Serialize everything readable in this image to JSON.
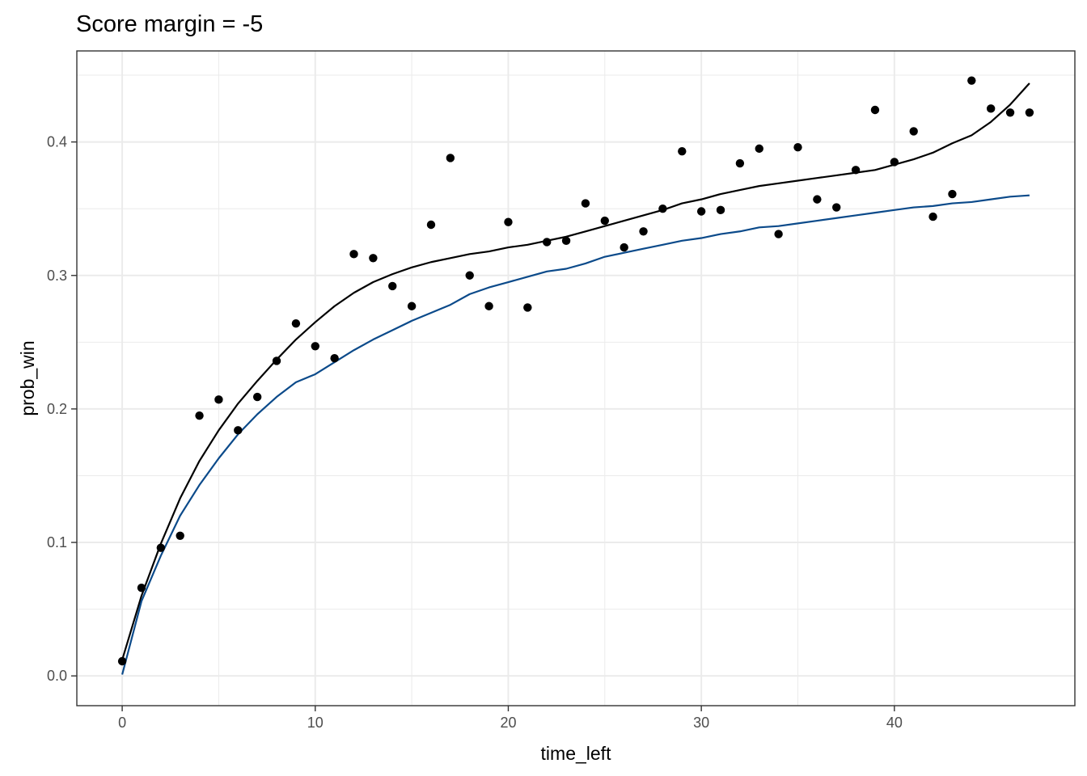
{
  "chart_data": {
    "type": "scatter",
    "title": "Score margin = -5",
    "xlabel": "time_left",
    "ylabel": "prob_win",
    "xlim": [
      -2.35,
      49.35
    ],
    "ylim": [
      -0.0223,
      0.4682
    ],
    "x_ticks": [
      0,
      10,
      20,
      30,
      40
    ],
    "x_tick_labels": [
      "0",
      "10",
      "20",
      "30",
      "40"
    ],
    "y_ticks": [
      0.0,
      0.1,
      0.2,
      0.3,
      0.4
    ],
    "y_tick_labels": [
      "0.0",
      "0.1",
      "0.2",
      "0.3",
      "0.4"
    ],
    "grid": true,
    "legend": "none",
    "points": {
      "color": "#000000",
      "x": [
        0,
        1,
        2,
        3,
        4,
        5,
        6,
        7,
        8,
        9,
        10,
        11,
        12,
        13,
        14,
        15,
        16,
        17,
        18,
        19,
        20,
        21,
        22,
        23,
        24,
        25,
        26,
        27,
        28,
        29,
        30,
        31,
        32,
        33,
        34,
        35,
        36,
        37,
        38,
        39,
        40,
        41,
        42,
        43,
        44,
        45,
        46,
        47
      ],
      "y": [
        0.011,
        0.066,
        0.096,
        0.105,
        0.195,
        0.207,
        0.184,
        0.209,
        0.236,
        0.264,
        0.247,
        0.238,
        0.316,
        0.313,
        0.292,
        0.277,
        0.338,
        0.388,
        0.3,
        0.277,
        0.34,
        0.276,
        0.325,
        0.326,
        0.354,
        0.341,
        0.321,
        0.333,
        0.35,
        0.393,
        0.348,
        0.349,
        0.384,
        0.395,
        0.331,
        0.396,
        0.357,
        0.351,
        0.379,
        0.424,
        0.385,
        0.408,
        0.344,
        0.361,
        0.446,
        0.425,
        0.422,
        0.422
      ]
    },
    "lines": [
      {
        "color": "#000000",
        "x": [
          0,
          1,
          2,
          3,
          4,
          5,
          6,
          7,
          8,
          9,
          10,
          11,
          12,
          13,
          14,
          15,
          16,
          17,
          18,
          19,
          20,
          21,
          22,
          23,
          24,
          25,
          26,
          27,
          28,
          29,
          30,
          31,
          32,
          33,
          34,
          35,
          36,
          37,
          38,
          39,
          40,
          41,
          42,
          43,
          44,
          45,
          46,
          47
        ],
        "y": [
          0.012,
          0.06,
          0.099,
          0.133,
          0.161,
          0.184,
          0.204,
          0.221,
          0.237,
          0.252,
          0.265,
          0.277,
          0.287,
          0.295,
          0.301,
          0.306,
          0.31,
          0.313,
          0.316,
          0.318,
          0.321,
          0.323,
          0.326,
          0.329,
          0.333,
          0.337,
          0.341,
          0.345,
          0.349,
          0.354,
          0.357,
          0.361,
          0.364,
          0.367,
          0.369,
          0.371,
          0.373,
          0.375,
          0.377,
          0.379,
          0.383,
          0.387,
          0.392,
          0.399,
          0.405,
          0.415,
          0.428,
          0.444
        ]
      },
      {
        "color": "#0b4a8a",
        "x": [
          0,
          1,
          2,
          3,
          4,
          5,
          6,
          7,
          8,
          9,
          10,
          11,
          12,
          13,
          14,
          15,
          16,
          17,
          18,
          19,
          20,
          21,
          22,
          23,
          24,
          25,
          26,
          27,
          28,
          29,
          30,
          31,
          32,
          33,
          34,
          35,
          36,
          37,
          38,
          39,
          40,
          41,
          42,
          43,
          44,
          45,
          46,
          47
        ],
        "y": [
          0.001,
          0.056,
          0.09,
          0.12,
          0.143,
          0.163,
          0.181,
          0.196,
          0.209,
          0.22,
          0.226,
          0.235,
          0.244,
          0.252,
          0.259,
          0.266,
          0.272,
          0.278,
          0.286,
          0.291,
          0.295,
          0.299,
          0.303,
          0.305,
          0.309,
          0.314,
          0.317,
          0.32,
          0.323,
          0.326,
          0.328,
          0.331,
          0.333,
          0.336,
          0.337,
          0.339,
          0.341,
          0.343,
          0.345,
          0.347,
          0.349,
          0.351,
          0.352,
          0.354,
          0.355,
          0.357,
          0.359,
          0.36
        ]
      }
    ]
  }
}
